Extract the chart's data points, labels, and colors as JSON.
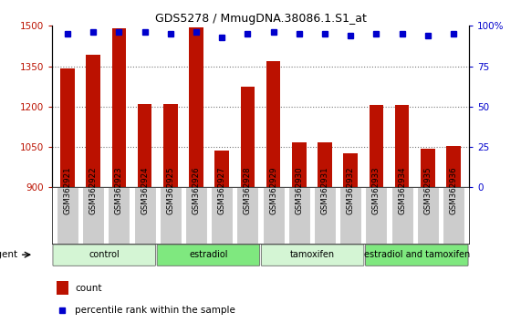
{
  "title": "GDS5278 / MmugDNA.38086.1.S1_at",
  "samples": [
    "GSM362921",
    "GSM362922",
    "GSM362923",
    "GSM362924",
    "GSM362925",
    "GSM362926",
    "GSM362927",
    "GSM362928",
    "GSM362929",
    "GSM362930",
    "GSM362931",
    "GSM362932",
    "GSM362933",
    "GSM362934",
    "GSM362935",
    "GSM362936"
  ],
  "counts": [
    1342,
    1393,
    1490,
    1208,
    1208,
    1495,
    1035,
    1275,
    1370,
    1068,
    1068,
    1025,
    1205,
    1207,
    1043,
    1052
  ],
  "percentiles": [
    95,
    96,
    96,
    96,
    95,
    96,
    93,
    95,
    96,
    95,
    95,
    94,
    95,
    95,
    94,
    95
  ],
  "groups": [
    {
      "name": "control",
      "start": 0,
      "end": 4,
      "color": "#d4f5d4"
    },
    {
      "name": "estradiol",
      "start": 4,
      "end": 8,
      "color": "#7fe87f"
    },
    {
      "name": "tamoxifen",
      "start": 8,
      "end": 12,
      "color": "#d4f5d4"
    },
    {
      "name": "estradiol and tamoxifen",
      "start": 12,
      "end": 16,
      "color": "#7fe87f"
    }
  ],
  "ylim_left": [
    900,
    1500
  ],
  "yticks_left": [
    900,
    1050,
    1200,
    1350,
    1500
  ],
  "ylim_right": [
    0,
    100
  ],
  "yticks_right": [
    0,
    25,
    50,
    75,
    100
  ],
  "bar_color": "#bb1100",
  "dot_color": "#0000cc",
  "bar_width": 0.55,
  "grid_color": "#777777",
  "bg_color": "#ffffff",
  "tick_box_color": "#cccccc",
  "legend_count_color": "#bb1100",
  "legend_dot_color": "#0000cc"
}
